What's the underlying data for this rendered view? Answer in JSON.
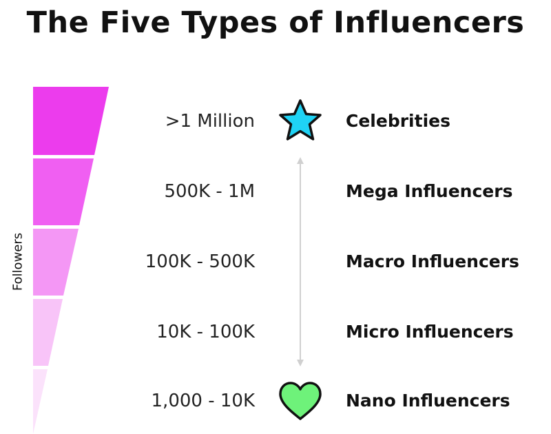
{
  "title": "The Five Types of Influencers",
  "axis_label": "Followers",
  "colors": {
    "tier1": "#ec3ced",
    "tier2": "#f05ff2",
    "tier3": "#f497f5",
    "tier4": "#f8c4f8",
    "tier5": "#fbe2fb",
    "star": "#1fd3f5",
    "heart": "#6ef27a",
    "arrow": "#d0d0d0"
  },
  "tiers": [
    {
      "range": ">1 Million",
      "type": "Celebrities"
    },
    {
      "range": "500K - 1M",
      "type": "Mega Influencers"
    },
    {
      "range": "100K - 500K",
      "type": "Macro Influencers"
    },
    {
      "range": "10K - 100K",
      "type": "Micro Influencers"
    },
    {
      "range": "1,000 - 10K",
      "type": "Nano Influencers"
    }
  ],
  "icons": {
    "top": "star-icon",
    "bottom": "heart-icon"
  }
}
